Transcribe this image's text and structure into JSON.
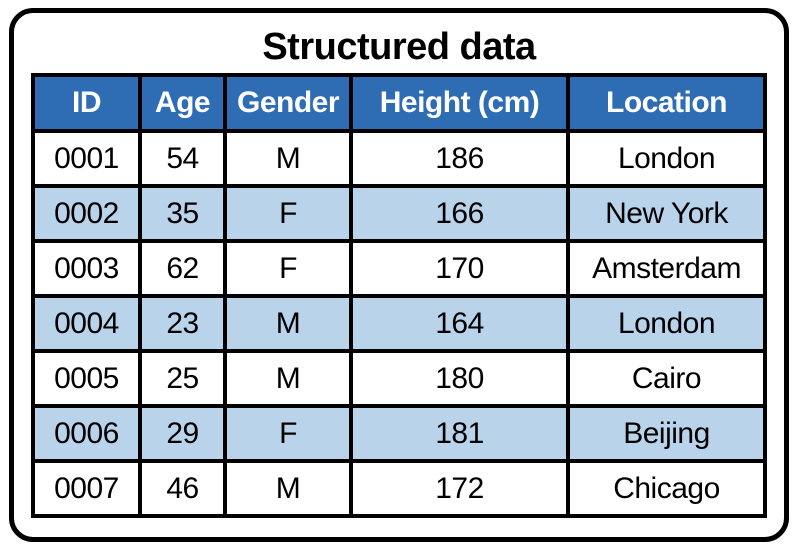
{
  "title": "Structured data",
  "colors": {
    "header_bg": "#2E6DB4",
    "header_text": "#FFFFFF",
    "row_bg": "#FFFFFF",
    "row_alt_bg": "#B9D3EA",
    "border": "#000000",
    "text": "#000000",
    "background": "#FFFFFF"
  },
  "chart_data": {
    "type": "table",
    "title": "Structured data",
    "columns": [
      "ID",
      "Age",
      "Gender",
      "Height (cm)",
      "Location"
    ],
    "rows": [
      [
        "0001",
        54,
        "M",
        186,
        "London"
      ],
      [
        "0002",
        35,
        "F",
        166,
        "New York"
      ],
      [
        "0003",
        62,
        "F",
        170,
        "Amsterdam"
      ],
      [
        "0004",
        23,
        "M",
        164,
        "London"
      ],
      [
        "0005",
        25,
        "M",
        180,
        "Cairo"
      ],
      [
        "0006",
        29,
        "F",
        181,
        "Beijing"
      ],
      [
        "0007",
        46,
        "M",
        172,
        "Chicago"
      ]
    ]
  }
}
